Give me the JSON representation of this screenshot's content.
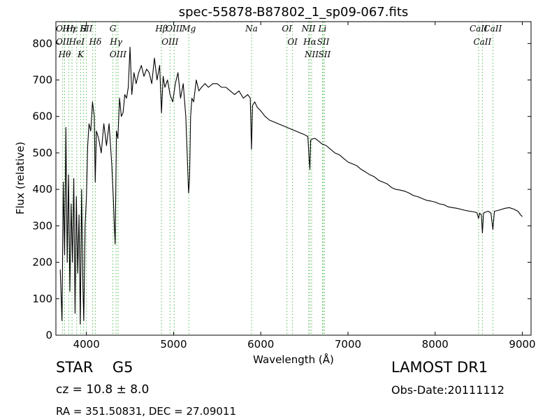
{
  "chart_data": {
    "type": "line",
    "title": "spec-55878-B87802_1_sp09-067.fits",
    "xlabel": "Wavelength (Å)",
    "ylabel": "Flux (relative)",
    "xlim": [
      3650,
      9100
    ],
    "ylim": [
      0,
      860
    ],
    "xticks": [
      4000,
      5000,
      6000,
      7000,
      8000,
      9000
    ],
    "yticks": [
      0,
      100,
      200,
      300,
      400,
      500,
      600,
      700,
      800
    ],
    "grid": false,
    "series": [
      {
        "color": "#000000",
        "x": [
          3700,
          3720,
          3735,
          3750,
          3765,
          3780,
          3795,
          3810,
          3825,
          3840,
          3855,
          3870,
          3885,
          3900,
          3915,
          3930,
          3945,
          3960,
          3970,
          3985,
          4000,
          4015,
          4030,
          4050,
          4070,
          4090,
          4101,
          4115,
          4140,
          4170,
          4200,
          4230,
          4260,
          4290,
          4310,
          4320,
          4330,
          4345,
          4361,
          4380,
          4400,
          4420,
          4440,
          4460,
          4480,
          4500,
          4520,
          4545,
          4570,
          4600,
          4630,
          4660,
          4690,
          4720,
          4750,
          4780,
          4810,
          4840,
          4861,
          4880,
          4900,
          4930,
          4960,
          4990,
          5020,
          5050,
          5080,
          5110,
          5140,
          5160,
          5172,
          5183,
          5195,
          5210,
          5230,
          5260,
          5290,
          5320,
          5360,
          5400,
          5450,
          5500,
          5550,
          5600,
          5650,
          5700,
          5750,
          5800,
          5850,
          5880,
          5893,
          5905,
          5930,
          5960,
          6000,
          6050,
          6100,
          6150,
          6200,
          6250,
          6300,
          6350,
          6400,
          6450,
          6500,
          6540,
          6555,
          6563,
          6572,
          6590,
          6620,
          6650,
          6700,
          6750,
          6800,
          6850,
          6900,
          6950,
          7000,
          7050,
          7100,
          7150,
          7200,
          7250,
          7300,
          7350,
          7400,
          7450,
          7500,
          7550,
          7600,
          7650,
          7700,
          7750,
          7800,
          7850,
          7900,
          7950,
          8000,
          8050,
          8100,
          8150,
          8200,
          8250,
          8300,
          8350,
          8400,
          8450,
          8480,
          8498,
          8510,
          8530,
          8542,
          8555,
          8580,
          8610,
          8640,
          8662,
          8680,
          8720,
          8760,
          8800,
          8850,
          8900,
          8950,
          8980,
          9000
        ],
        "y": [
          180,
          40,
          420,
          220,
          570,
          200,
          440,
          120,
          360,
          200,
          430,
          60,
          380,
          170,
          330,
          30,
          400,
          130,
          40,
          300,
          380,
          520,
          580,
          560,
          640,
          600,
          420,
          560,
          540,
          500,
          580,
          520,
          580,
          470,
          370,
          300,
          250,
          560,
          540,
          650,
          600,
          610,
          660,
          650,
          680,
          790,
          660,
          720,
          690,
          720,
          740,
          710,
          730,
          720,
          690,
          760,
          700,
          740,
          610,
          710,
          680,
          700,
          660,
          640,
          690,
          720,
          650,
          690,
          600,
          470,
          390,
          430,
          600,
          650,
          640,
          700,
          670,
          680,
          690,
          680,
          690,
          690,
          680,
          680,
          670,
          660,
          670,
          650,
          660,
          650,
          510,
          630,
          640,
          625,
          615,
          600,
          590,
          585,
          580,
          575,
          570,
          565,
          560,
          555,
          550,
          545,
          480,
          455,
          535,
          538,
          540,
          535,
          525,
          520,
          510,
          500,
          495,
          485,
          475,
          470,
          465,
          455,
          448,
          440,
          435,
          425,
          420,
          415,
          405,
          400,
          398,
          395,
          390,
          383,
          380,
          375,
          370,
          368,
          365,
          360,
          358,
          352,
          350,
          348,
          345,
          342,
          340,
          338,
          336,
          320,
          335,
          330,
          280,
          335,
          338,
          340,
          335,
          290,
          340,
          342,
          345,
          348,
          350,
          346,
          340,
          330,
          325
        ]
      }
    ],
    "lines": [
      {
        "wave": 3727,
        "labels": [
          "OII",
          "OII"
        ]
      },
      {
        "wave": 3750,
        "labels": [
          "Hθ"
        ]
      },
      {
        "wave": 3797,
        "labels": [
          "Hη"
        ]
      },
      {
        "wave": 3835,
        "labels": [
          "Hε"
        ]
      },
      {
        "wave": 3889,
        "labels": [
          "HeI"
        ]
      },
      {
        "wave": 3934,
        "labels": [
          "K"
        ]
      },
      {
        "wave": 3968,
        "labels": [
          "H"
        ]
      },
      {
        "wave": 4000,
        "labels": [
          "SII"
        ]
      },
      {
        "wave": 4072,
        "labels": []
      },
      {
        "wave": 4102,
        "labels": [
          "Hδ"
        ]
      },
      {
        "wave": 4304,
        "labels": [
          "G"
        ]
      },
      {
        "wave": 4340,
        "labels": [
          "Hγ"
        ]
      },
      {
        "wave": 4363,
        "labels": [
          "OIII"
        ]
      },
      {
        "wave": 4861,
        "labels": [
          "Hβ"
        ]
      },
      {
        "wave": 4959,
        "labels": [
          "OIII"
        ]
      },
      {
        "wave": 5007,
        "labels": [
          "OIII"
        ]
      },
      {
        "wave": 5175,
        "labels": [
          "Mg"
        ]
      },
      {
        "wave": 5894,
        "labels": [
          "Na"
        ]
      },
      {
        "wave": 6300,
        "labels": [
          "OI"
        ]
      },
      {
        "wave": 6364,
        "labels": [
          "OI"
        ]
      },
      {
        "wave": 6548,
        "labels": [
          "NII"
        ]
      },
      {
        "wave": 6563,
        "labels": [
          "Hα"
        ]
      },
      {
        "wave": 6583,
        "labels": [
          "NII"
        ]
      },
      {
        "wave": 6707,
        "labels": [
          "Li"
        ]
      },
      {
        "wave": 6716,
        "labels": [
          "SII"
        ]
      },
      {
        "wave": 6731,
        "labels": [
          "SII"
        ]
      },
      {
        "wave": 8498,
        "labels": [
          "CaII"
        ]
      },
      {
        "wave": 8542,
        "labels": [
          "CaII"
        ]
      },
      {
        "wave": 8662,
        "labels": [
          "CaII"
        ]
      }
    ]
  },
  "info": {
    "object_class": "STAR",
    "subclass": "G5",
    "survey": "LAMOST DR1",
    "cz_text": "cz = 10.8 ± 8.0",
    "obs_date": "Obs-Date:20111112",
    "radec": "RA = 351.50831, DEC = 27.09011"
  },
  "colors": {
    "spectrum": "#000000",
    "line_markers": "#55bb55"
  }
}
